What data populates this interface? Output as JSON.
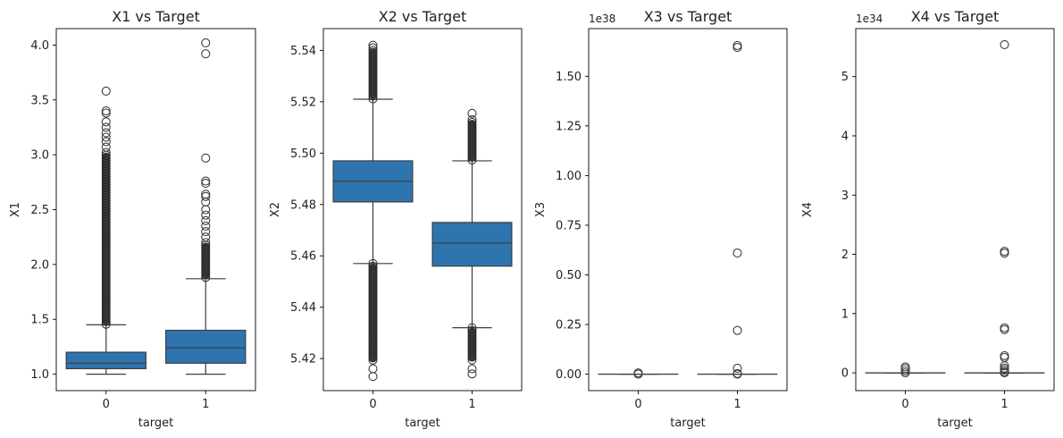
{
  "style": {
    "box_color": "#2e75b0",
    "line_color": "#3d3d3d",
    "outlier_color": "#3d3d3d"
  },
  "chart_data": [
    {
      "type": "box",
      "title": "X1 vs Target",
      "xlabel": "target",
      "ylabel": "X1",
      "categories": [
        "0",
        "1"
      ],
      "ylim": [
        0.85,
        4.15
      ],
      "yticks": [
        1.0,
        1.5,
        2.0,
        2.5,
        3.0,
        3.5,
        4.0
      ],
      "ytick_labels": [
        "1.0",
        "1.5",
        "2.0",
        "2.5",
        "3.0",
        "3.5",
        "4.0"
      ],
      "offset_text": "",
      "boxes": [
        {
          "q1": 1.05,
          "median": 1.1,
          "q3": 1.2,
          "whisker_low": 1.0,
          "whisker_high": 1.45,
          "outlier_band": [
            1.45,
            3.02
          ],
          "outliers": [
            3.07,
            3.12,
            3.16,
            3.2,
            3.25,
            3.3,
            3.38,
            3.4,
            3.58
          ]
        },
        {
          "q1": 1.1,
          "median": 1.24,
          "q3": 1.4,
          "whisker_low": 1.0,
          "whisker_high": 1.87,
          "outlier_band": [
            1.87,
            2.2
          ],
          "outliers": [
            2.25,
            2.3,
            2.35,
            2.4,
            2.45,
            2.5,
            2.57,
            2.62,
            2.64,
            2.74,
            2.76,
            2.97,
            3.92,
            4.02
          ]
        }
      ]
    },
    {
      "type": "box",
      "title": "X2 vs Target",
      "xlabel": "target",
      "ylabel": "X2",
      "categories": [
        "0",
        "1"
      ],
      "ylim": [
        5.4075,
        5.5485
      ],
      "yticks": [
        5.42,
        5.44,
        5.46,
        5.48,
        5.5,
        5.52,
        5.54
      ],
      "ytick_labels": [
        "5.42",
        "5.44",
        "5.46",
        "5.48",
        "5.50",
        "5.52",
        "5.54"
      ],
      "offset_text": "",
      "boxes": [
        {
          "q1": 5.481,
          "median": 5.489,
          "q3": 5.497,
          "whisker_low": 5.457,
          "whisker_high": 5.521,
          "outlier_band_low": [
            5.4185,
            5.457
          ],
          "outlier_band_high": [
            5.521,
            5.541
          ],
          "outliers": [
            5.413,
            5.416,
            5.542
          ]
        },
        {
          "q1": 5.456,
          "median": 5.465,
          "q3": 5.473,
          "whisker_low": 5.432,
          "whisker_high": 5.497,
          "outlier_band_low": [
            5.419,
            5.432
          ],
          "outlier_band_high": [
            5.497,
            5.513
          ],
          "outliers": [
            5.414,
            5.416,
            5.5155
          ]
        }
      ]
    },
    {
      "type": "box",
      "title": "X3 vs Target",
      "xlabel": "target",
      "ylabel": "X3",
      "categories": [
        "0",
        "1"
      ],
      "ylim": [
        -0.083,
        1.74
      ],
      "yticks": [
        0,
        0.25,
        0.5,
        0.75,
        1.0,
        1.25,
        1.5
      ],
      "ytick_labels": [
        "0.00",
        "0.25",
        "0.50",
        "0.75",
        "1.00",
        "1.25",
        "1.50"
      ],
      "offset_text": "1e38",
      "boxes": [
        {
          "q1": 0,
          "median": 0,
          "q3": 0,
          "whisker_low": 0,
          "whisker_high": 0,
          "outliers": [
            0.0,
            0.006
          ]
        },
        {
          "q1": 0,
          "median": 0,
          "q3": 0,
          "whisker_low": 0,
          "whisker_high": 0,
          "outliers": [
            0.0,
            0.003,
            0.03,
            0.22,
            0.61,
            1.645,
            1.655
          ]
        }
      ]
    },
    {
      "type": "box",
      "title": "X4 vs Target",
      "xlabel": "target",
      "ylabel": "X4",
      "categories": [
        "0",
        "1"
      ],
      "ylim": [
        -0.3,
        5.81
      ],
      "yticks": [
        0,
        1,
        2,
        3,
        4,
        5
      ],
      "ytick_labels": [
        "0",
        "1",
        "2",
        "3",
        "4",
        "5"
      ],
      "offset_text": "1e34",
      "boxes": [
        {
          "q1": 0,
          "median": 0,
          "q3": 0,
          "whisker_low": 0,
          "whisker_high": 0,
          "outliers": [
            0.0,
            0.03,
            0.07,
            0.1
          ]
        },
        {
          "q1": 0,
          "median": 0,
          "q3": 0,
          "whisker_low": 0,
          "whisker_high": 0,
          "outliers": [
            0.0,
            0.02,
            0.05,
            0.08,
            0.12,
            0.26,
            0.29,
            0.73,
            0.76,
            2.02,
            2.05,
            5.54
          ]
        }
      ]
    }
  ]
}
